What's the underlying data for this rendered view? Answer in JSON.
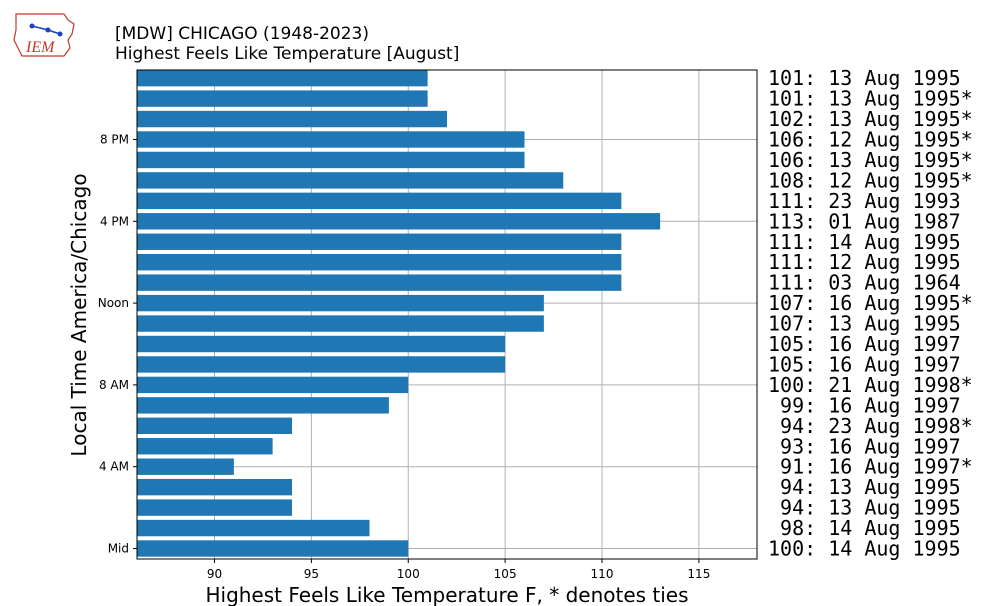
{
  "header": {
    "station_line": "[MDW] CHICAGO (1948-2023)",
    "title_line": "Highest Feels Like Temperature [August]",
    "logo_text": "IEM"
  },
  "colors": {
    "bar": "#1f77b4",
    "grid": "#b0b0b0",
    "logo": "#c0392b"
  },
  "chart_data": {
    "type": "bar",
    "orientation": "horizontal",
    "title": "Highest Feels Like Temperature [August]",
    "subtitle": "[MDW] CHICAGO (1948-2023)",
    "xlabel": "Highest Feels Like Temperature F, * denotes ties",
    "ylabel": "Local Time America/Chicago",
    "xlim": [
      86,
      118
    ],
    "xticks": [
      90,
      95,
      100,
      105,
      110,
      115
    ],
    "ytick_labels": [
      {
        "hour": 0,
        "label": "Mid"
      },
      {
        "hour": 4,
        "label": "4 AM"
      },
      {
        "hour": 8,
        "label": "8 AM"
      },
      {
        "hour": 12,
        "label": "Noon"
      },
      {
        "hour": 16,
        "label": "4 PM"
      },
      {
        "hour": 20,
        "label": "8 PM"
      }
    ],
    "grid": true,
    "hours": [
      0,
      1,
      2,
      3,
      4,
      5,
      6,
      7,
      8,
      9,
      10,
      11,
      12,
      13,
      14,
      15,
      16,
      17,
      18,
      19,
      20,
      21,
      22,
      23
    ],
    "values": [
      100,
      98,
      94,
      94,
      91,
      93,
      94,
      99,
      100,
      105,
      105,
      107,
      107,
      111,
      111,
      111,
      113,
      111,
      108,
      106,
      106,
      102,
      101,
      101
    ],
    "annotations": [
      "100: 14 Aug 1995",
      " 98: 14 Aug 1995",
      " 94: 13 Aug 1995",
      " 94: 13 Aug 1995",
      " 91: 16 Aug 1997*",
      " 93: 16 Aug 1997",
      " 94: 23 Aug 1998*",
      " 99: 16 Aug 1997",
      "100: 21 Aug 1998*",
      "105: 16 Aug 1997",
      "105: 16 Aug 1997",
      "107: 13 Aug 1995",
      "107: 16 Aug 1995*",
      "111: 03 Aug 1964",
      "111: 12 Aug 1995",
      "111: 14 Aug 1995",
      "113: 01 Aug 1987",
      "111: 23 Aug 1993",
      "108: 12 Aug 1995*",
      "106: 13 Aug 1995*",
      "106: 12 Aug 1995*",
      "102: 13 Aug 1995*",
      "101: 13 Aug 1995*",
      "101: 13 Aug 1995"
    ]
  }
}
